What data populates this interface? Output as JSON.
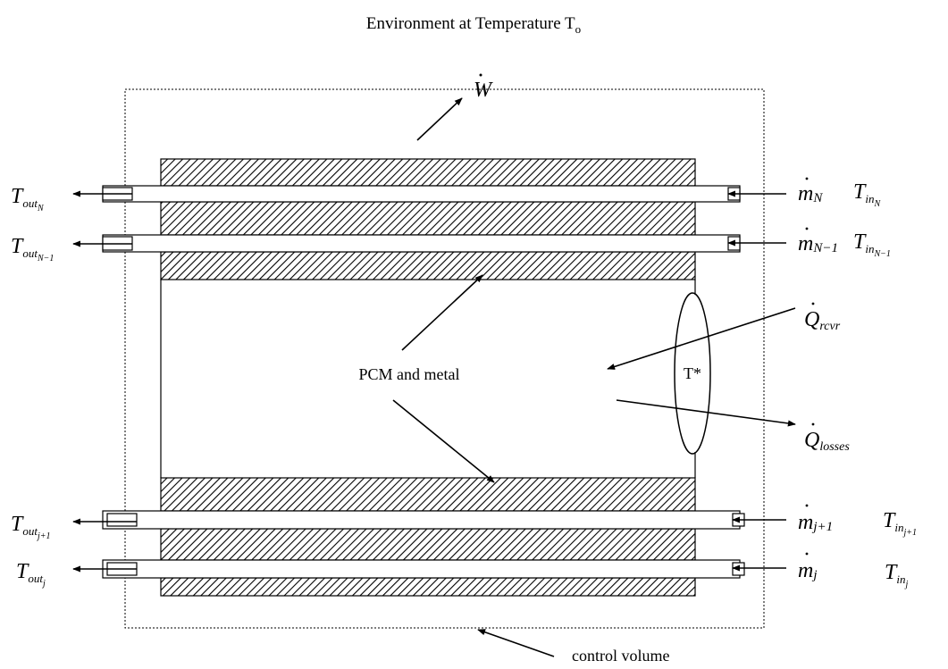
{
  "environment": {
    "text": "Environment at Temperature T",
    "sub": "o"
  },
  "work": "W",
  "outlets": [
    {
      "symbol": "T",
      "sub": "out",
      "subsub": "N"
    },
    {
      "symbol": "T",
      "sub": "out",
      "subsub": "N−1"
    },
    {
      "symbol": "T",
      "sub": "out",
      "subsub": "j+1"
    },
    {
      "symbol": "T",
      "sub": "out",
      "subsub": "j"
    }
  ],
  "mass_flows": [
    {
      "symbol": "m",
      "sub": "N"
    },
    {
      "symbol": "m",
      "sub": "N−1"
    },
    {
      "symbol": "m",
      "sub": "j+1"
    },
    {
      "symbol": "m",
      "sub": "j"
    }
  ],
  "inlets": [
    {
      "symbol": "T",
      "sub": "in",
      "subsub": "N"
    },
    {
      "symbol": "T",
      "sub": "in",
      "subsub": "N−1"
    },
    {
      "symbol": "T",
      "sub": "in",
      "subsub": "j+1"
    },
    {
      "symbol": "T",
      "sub": "in",
      "subsub": "j"
    }
  ],
  "heat_in": {
    "symbol": "Q",
    "sub": "rcvr"
  },
  "heat_out": {
    "symbol": "Q",
    "sub": "losses"
  },
  "interface_temperature": "T*",
  "pcm_label": "PCM and metal",
  "control_volume_label": "control volume"
}
